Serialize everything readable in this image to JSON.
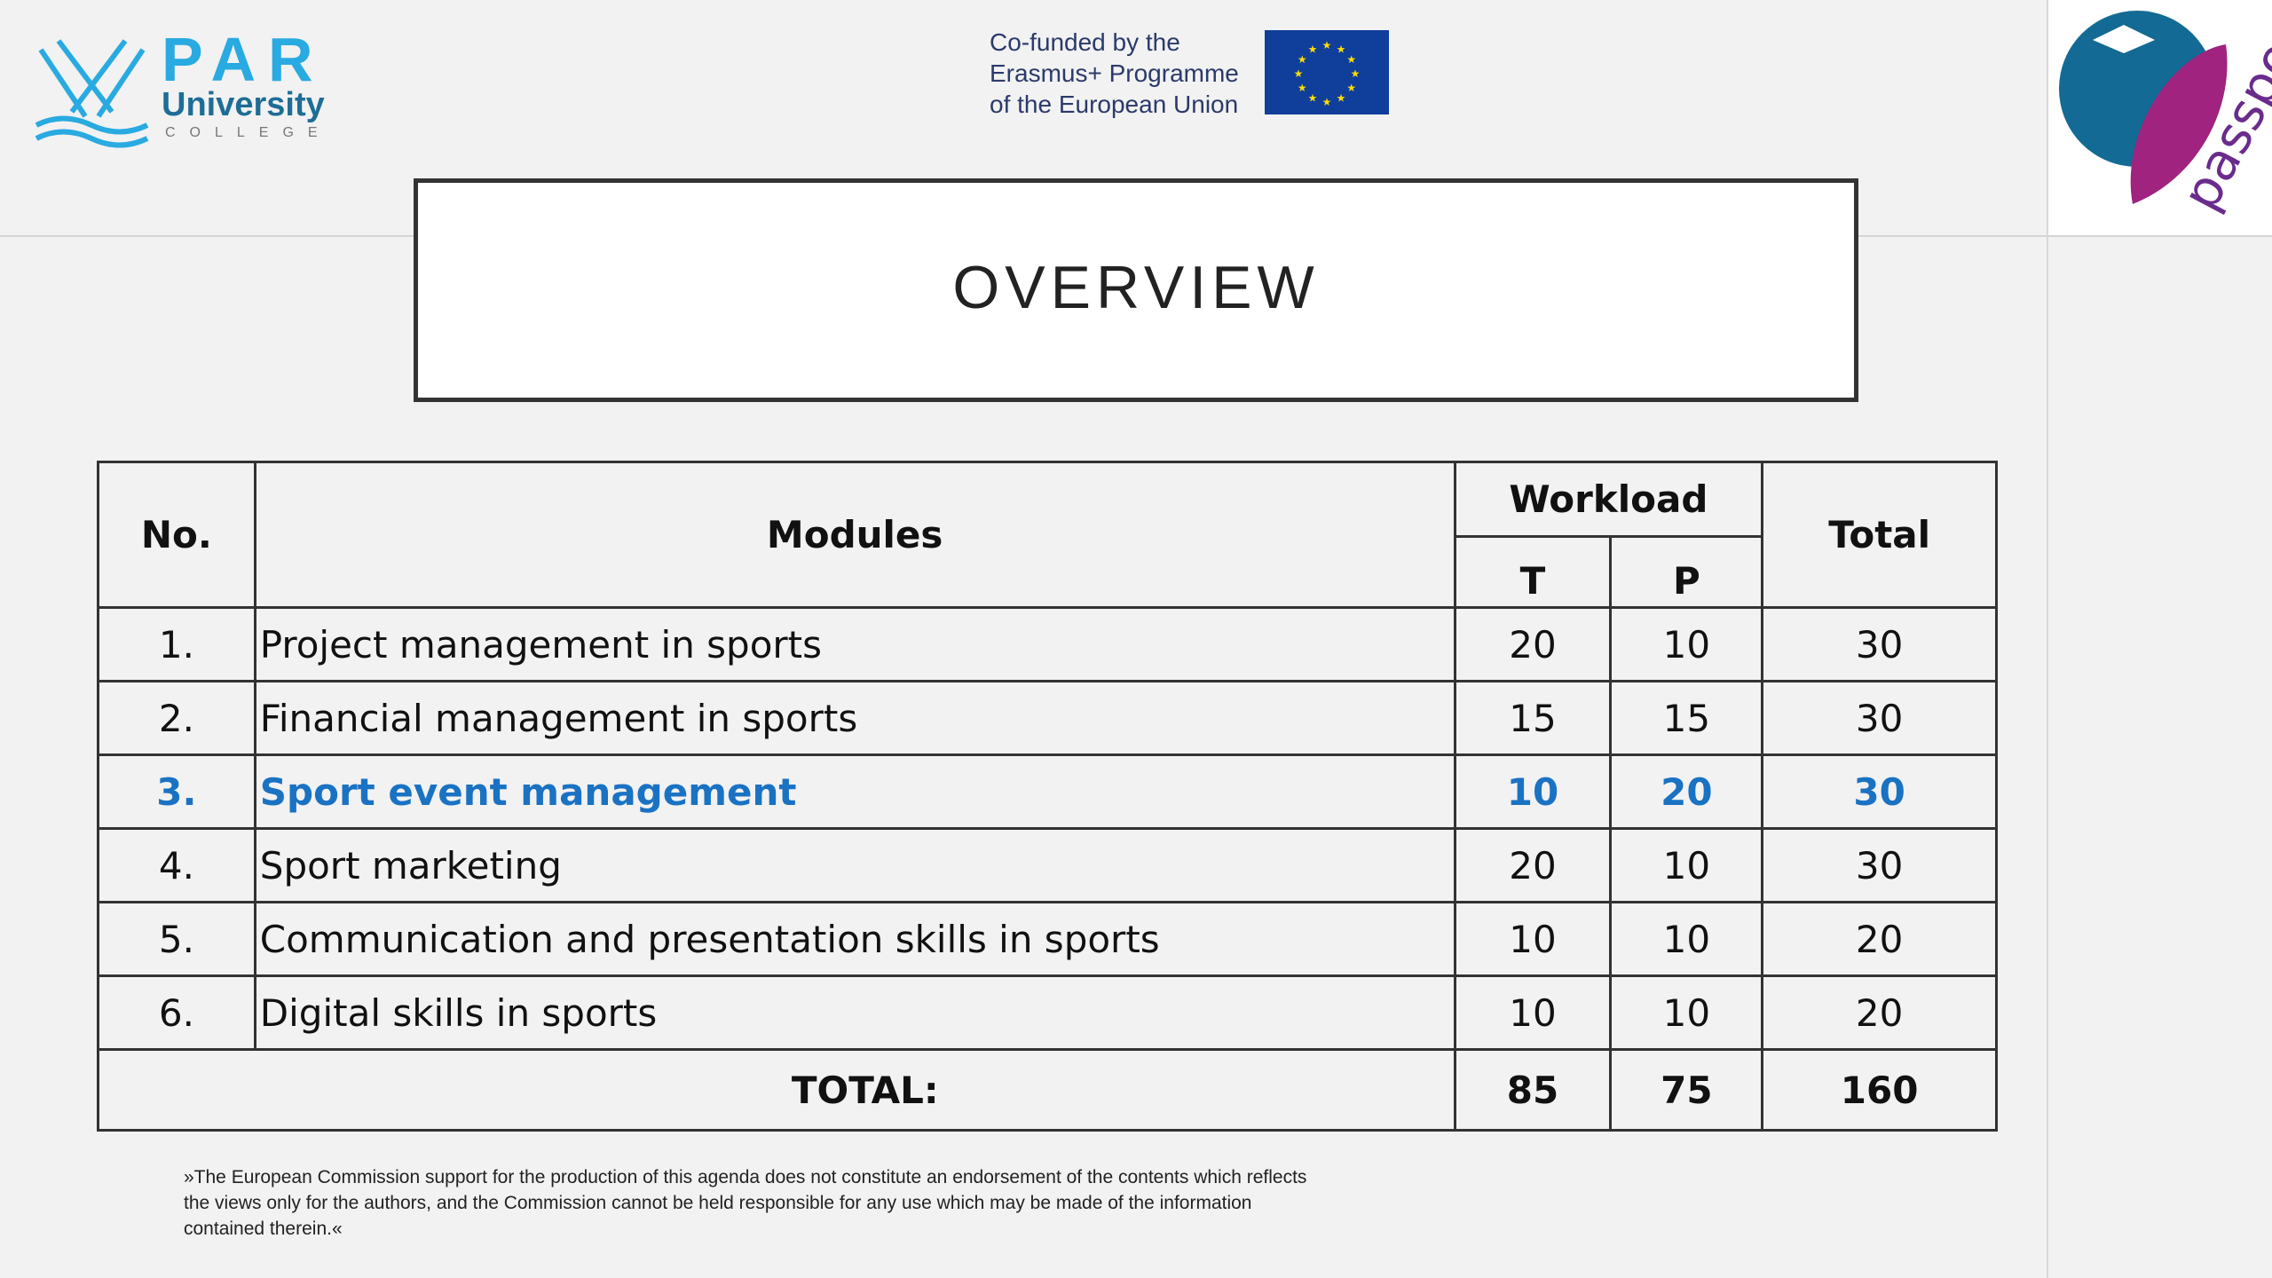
{
  "header": {
    "par_logo": {
      "line1": "PAR",
      "line2": "University",
      "line3": "COLLEGE"
    },
    "eu": {
      "lines": [
        "Co-funded by the",
        "Erasmus+ Programme",
        "of the European Union"
      ],
      "flag_color": "#0f3e9b",
      "star_color": "#ffdd00"
    },
    "passport_logo": {
      "text": "passport",
      "colors": [
        "#136a94",
        "#a0237f",
        "#6a2c8c"
      ]
    }
  },
  "title": "OVERVIEW",
  "table": {
    "headers": {
      "no": "No.",
      "modules": "Modules",
      "workload": "Workload",
      "t": "T",
      "p": "P",
      "total": "Total"
    },
    "rows": [
      {
        "no": "1.",
        "module": "Project management in sports",
        "t": "20",
        "p": "10",
        "total": "30"
      },
      {
        "no": "2.",
        "module": "Financial management in sports",
        "t": "15",
        "p": "15",
        "total": "30"
      },
      {
        "no": "3.",
        "module": "Sport event management",
        "t": "10",
        "p": "20",
        "total": "30",
        "highlighted": true
      },
      {
        "no": "4.",
        "module": "Sport marketing",
        "t": "20",
        "p": "10",
        "total": "30"
      },
      {
        "no": "5.",
        "module": "Communication and presentation skills in sports",
        "t": "10",
        "p": "10",
        "total": "20"
      },
      {
        "no": "6.",
        "module": "Digital skills in sports",
        "t": "10",
        "p": "10",
        "total": "20"
      }
    ],
    "total": {
      "label": "TOTAL:",
      "t": "85",
      "p": "75",
      "total": "160"
    },
    "highlight_color": "#1a72c3"
  },
  "disclaimer": "»The European Commission support for the production of this agenda does not constitute an endorsement of the contents which reflects the views only for the authors, and the Commission cannot be held responsible for any use which may be made of the information contained therein.«"
}
